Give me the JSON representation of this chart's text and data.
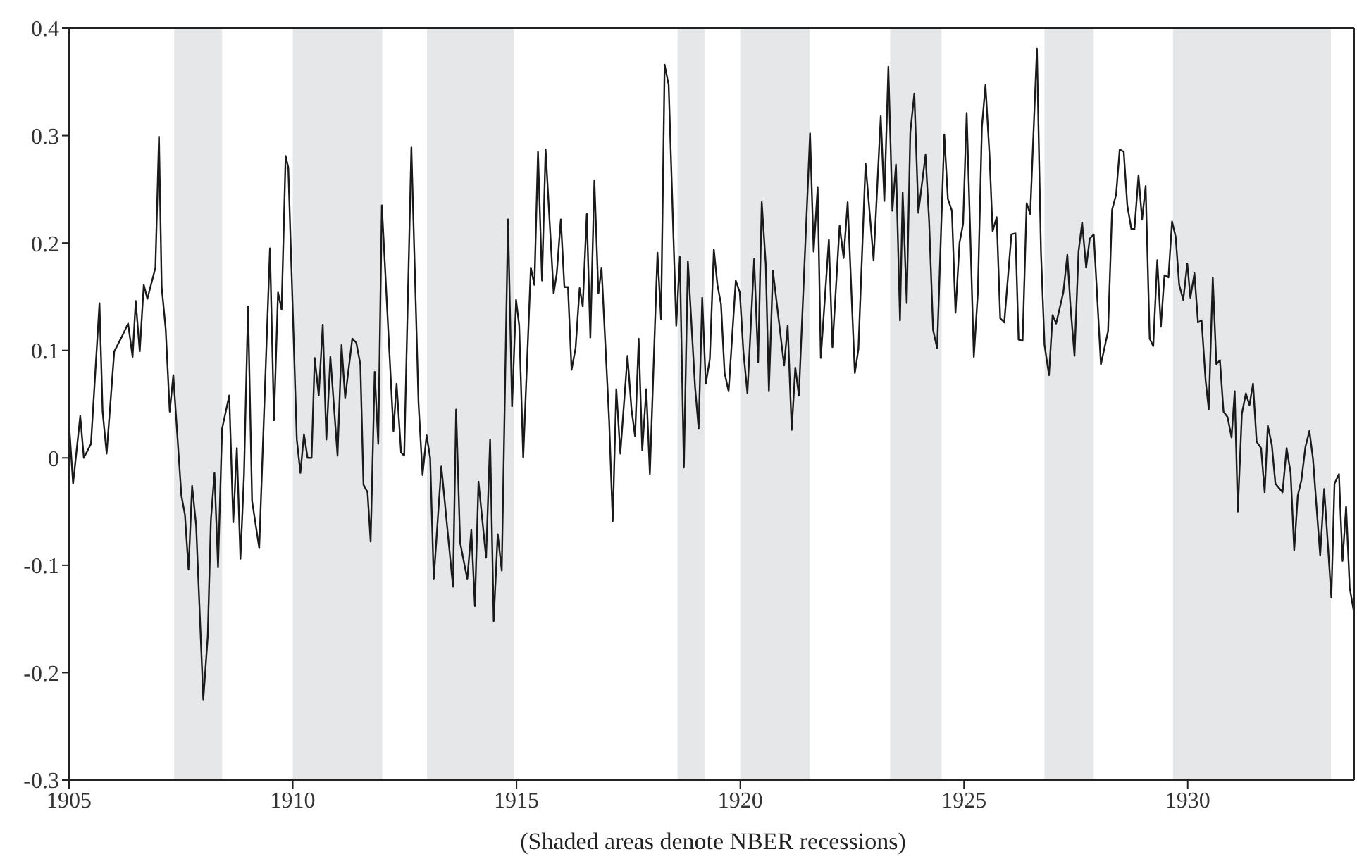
{
  "chart_data": {
    "type": "line",
    "x": [
      1905.0,
      1905.09,
      1905.25,
      1905.33,
      1905.49,
      1905.68,
      1905.75,
      1905.84,
      1906.01,
      1906.17,
      1906.32,
      1906.42,
      1906.49,
      1906.58,
      1906.67,
      1906.75,
      1906.93,
      1907.01,
      1907.07,
      1907.16,
      1907.25,
      1907.33,
      1907.51,
      1907.59,
      1907.67,
      1907.75,
      1907.84,
      1908.0,
      1908.1,
      1908.17,
      1908.25,
      1908.33,
      1908.42,
      1908.58,
      1908.67,
      1908.75,
      1908.83,
      1908.91,
      1909.0,
      1909.09,
      1909.25,
      1909.49,
      1909.58,
      1909.67,
      1909.75,
      1909.84,
      1909.9,
      1910.09,
      1910.17,
      1910.25,
      1910.33,
      1910.42,
      1910.49,
      1910.58,
      1910.67,
      1910.75,
      1910.84,
      1911.0,
      1911.09,
      1911.17,
      1911.33,
      1911.42,
      1911.51,
      1911.58,
      1911.67,
      1911.74,
      1911.83,
      1911.91,
      1911.99,
      1912.25,
      1912.32,
      1912.42,
      1912.49,
      1912.65,
      1912.81,
      1912.9,
      1912.99,
      1913.07,
      1913.15,
      1913.32,
      1913.58,
      1913.65,
      1913.74,
      1913.9,
      1913.99,
      1914.07,
      1914.15,
      1914.32,
      1914.41,
      1914.49,
      1914.58,
      1914.67,
      1914.81,
      1914.9,
      1914.99,
      1915.06,
      1915.15,
      1915.32,
      1915.4,
      1915.48,
      1915.57,
      1915.65,
      1915.83,
      1915.9,
      1915.99,
      1916.07,
      1916.15,
      1916.23,
      1916.32,
      1916.41,
      1916.48,
      1916.57,
      1916.65,
      1916.74,
      1916.83,
      1916.9,
      1917.07,
      1917.15,
      1917.23,
      1917.32,
      1917.48,
      1917.57,
      1917.65,
      1917.73,
      1917.81,
      1917.9,
      1917.98,
      1918.15,
      1918.23,
      1918.31,
      1918.4,
      1918.57,
      1918.65,
      1918.74,
      1918.83,
      1918.99,
      1919.07,
      1919.15,
      1919.23,
      1919.32,
      1919.41,
      1919.49,
      1919.57,
      1919.65,
      1919.74,
      1919.9,
      1919.99,
      1920.07,
      1920.16,
      1920.31,
      1920.4,
      1920.48,
      1920.57,
      1920.64,
      1920.73,
      1920.81,
      1920.98,
      1921.06,
      1921.15,
      1921.23,
      1921.31,
      1921.56,
      1921.64,
      1921.73,
      1921.8,
      1921.98,
      1922.06,
      1922.22,
      1922.31,
      1922.4,
      1922.56,
      1922.64,
      1922.8,
      1922.98,
      1923.14,
      1923.22,
      1923.31,
      1923.4,
      1923.48,
      1923.57,
      1923.63,
      1923.72,
      1923.8,
      1923.89,
      1923.98,
      1924.14,
      1924.22,
      1924.31,
      1924.4,
      1924.56,
      1924.64,
      1924.73,
      1924.81,
      1924.9,
      1924.98,
      1925.06,
      1925.15,
      1925.22,
      1925.31,
      1925.4,
      1925.48,
      1925.57,
      1925.64,
      1925.73,
      1925.81,
      1925.9,
      1925.99,
      1926.06,
      1926.15,
      1926.22,
      1926.31,
      1926.4,
      1926.48,
      1926.63,
      1926.72,
      1926.8,
      1926.9,
      1926.98,
      1927.06,
      1927.22,
      1927.31,
      1927.38,
      1927.47,
      1927.56,
      1927.64,
      1927.73,
      1927.81,
      1927.9,
      1928.06,
      1928.22,
      1928.31,
      1928.4,
      1928.48,
      1928.57,
      1928.65,
      1928.74,
      1928.81,
      1928.9,
      1928.98,
      1929.06,
      1929.15,
      1929.23,
      1929.32,
      1929.4,
      1929.48,
      1929.57,
      1929.65,
      1929.73,
      1929.81,
      1929.9,
      1929.99,
      1930.06,
      1930.15,
      1930.23,
      1930.31,
      1930.4,
      1930.47,
      1930.56,
      1930.64,
      1930.72,
      1930.8,
      1930.89,
      1930.98,
      1931.05,
      1931.12,
      1931.21,
      1931.3,
      1931.38,
      1931.46,
      1931.54,
      1931.64,
      1931.72,
      1931.79,
      1931.88,
      1931.96,
      1932.12,
      1932.21,
      1932.3,
      1932.38,
      1932.46,
      1932.54,
      1932.63,
      1932.72,
      1932.8,
      1932.96,
      1933.05,
      1933.21,
      1933.28,
      1933.38,
      1933.46,
      1933.54,
      1933.62,
      1933.72
    ],
    "series": [
      {
        "color": "#1a1a1a",
        "values": [
          0.032,
          -0.024,
          0.039,
          0,
          0.013,
          0.144,
          0.043,
          0.004,
          0.099,
          0.112,
          0.125,
          0.094,
          0.146,
          0.099,
          0.161,
          0.148,
          0.177,
          0.299,
          0.159,
          0.12,
          0.043,
          0.077,
          -0.035,
          -0.053,
          -0.104,
          -0.026,
          -0.063,
          -0.225,
          -0.166,
          -0.058,
          -0.014,
          -0.102,
          0.027,
          0.058,
          -0.06,
          0.009,
          -0.094,
          -0.016,
          0.141,
          -0.04,
          -0.084,
          0.195,
          0.035,
          0.154,
          0.138,
          0.281,
          0.27,
          0.017,
          -0.014,
          0.022,
          0,
          0,
          0.093,
          0.058,
          0.124,
          0.017,
          0.094,
          0.002,
          0.105,
          0.056,
          0.111,
          0.107,
          0.087,
          -0.025,
          -0.032,
          -0.078,
          0.08,
          0.013,
          0.235,
          0.025,
          0.069,
          0.005,
          0.002,
          0.289,
          0.051,
          -0.016,
          0.021,
          0,
          -0.113,
          -0.008,
          -0.12,
          0.045,
          -0.079,
          -0.113,
          -0.067,
          -0.138,
          -0.022,
          -0.093,
          0.017,
          -0.152,
          -0.071,
          -0.105,
          0.222,
          0.048,
          0.147,
          0.123,
          0,
          0.177,
          0.161,
          0.285,
          0.165,
          0.287,
          0.153,
          0.172,
          0.222,
          0.159,
          0.159,
          0.082,
          0.102,
          0.158,
          0.141,
          0.227,
          0.112,
          0.258,
          0.153,
          0.177,
          0.035,
          -0.059,
          0.064,
          0.004,
          0.095,
          0.045,
          0.02,
          0.111,
          0.007,
          0.064,
          -0.015,
          0.191,
          0.129,
          0.366,
          0.347,
          0.123,
          0.187,
          -0.009,
          0.183,
          0.066,
          0.027,
          0.149,
          0.069,
          0.092,
          0.194,
          0.161,
          0.143,
          0.079,
          0.062,
          0.165,
          0.154,
          0.099,
          0.06,
          0.185,
          0.089,
          0.238,
          0.18,
          0.062,
          0.174,
          0.146,
          0.086,
          0.123,
          0.026,
          0.084,
          0.058,
          0.302,
          0.192,
          0.252,
          0.093,
          0.203,
          0.103,
          0.216,
          0.186,
          0.238,
          0.079,
          0.101,
          0.274,
          0.184,
          0.318,
          0.239,
          0.364,
          0.23,
          0.273,
          0.128,
          0.247,
          0.144,
          0.303,
          0.339,
          0.228,
          0.282,
          0.221,
          0.119,
          0.102,
          0.301,
          0.241,
          0.23,
          0.135,
          0.2,
          0.218,
          0.321,
          0.195,
          0.094,
          0.154,
          0.308,
          0.347,
          0.282,
          0.211,
          0.224,
          0.13,
          0.126,
          0.172,
          0.208,
          0.209,
          0.11,
          0.109,
          0.237,
          0.227,
          0.381,
          0.192,
          0.105,
          0.077,
          0.133,
          0.125,
          0.154,
          0.189,
          0.141,
          0.095,
          0.192,
          0.219,
          0.177,
          0.204,
          0.208,
          0.087,
          0.118,
          0.231,
          0.245,
          0.287,
          0.285,
          0.235,
          0.213,
          0.213,
          0.263,
          0.222,
          0.253,
          0.111,
          0.104,
          0.184,
          0.122,
          0.17,
          0.168,
          0.22,
          0.206,
          0.161,
          0.147,
          0.181,
          0.149,
          0.172,
          0.126,
          0.128,
          0.072,
          0.045,
          0.168,
          0.087,
          0.091,
          0.043,
          0.038,
          0.019,
          0.062,
          -0.05,
          0.041,
          0.06,
          0.049,
          0.069,
          0.015,
          0.009,
          -0.032,
          0.03,
          0.012,
          -0.024,
          -0.032,
          0.009,
          -0.014,
          -0.086,
          -0.035,
          -0.021,
          0.01,
          0.025,
          -0.001,
          -0.091,
          -0.029,
          -0.13,
          -0.024,
          -0.015,
          -0.096,
          -0.045,
          -0.121,
          -0.145
        ]
      }
    ],
    "xlim": [
      1905,
      1933.72
    ],
    "xticks": [
      1905,
      1910,
      1915,
      1920,
      1925,
      1930
    ],
    "ylim": [
      -0.3,
      0.4
    ],
    "yticks": [
      -0.3,
      -0.2,
      -0.1,
      0,
      0.1,
      0.2,
      0.3,
      0.4
    ],
    "bands": [
      {
        "axis": "x",
        "from": 1907.35,
        "to": 1908.42,
        "color": "#e6e7e9"
      },
      {
        "axis": "x",
        "from": 1910.0,
        "to": 1912.0,
        "color": "#e6e7e9"
      },
      {
        "axis": "x",
        "from": 1913.0,
        "to": 1914.95,
        "color": "#e6e7e9"
      },
      {
        "axis": "x",
        "from": 1918.6,
        "to": 1919.2,
        "color": "#e6e7e9"
      },
      {
        "axis": "x",
        "from": 1920.0,
        "to": 1921.55,
        "color": "#e6e7e9"
      },
      {
        "axis": "x",
        "from": 1923.35,
        "to": 1924.5,
        "color": "#e6e7e9"
      },
      {
        "axis": "x",
        "from": 1926.8,
        "to": 1927.9,
        "color": "#e6e7e9"
      },
      {
        "axis": "x",
        "from": 1929.67,
        "to": 1933.2,
        "color": "#e6e7e9"
      }
    ],
    "annotations": [
      "(Shaded areas denote NBER recessions)"
    ],
    "grid": false,
    "legend": false,
    "marker": "none",
    "line_style": "solid"
  }
}
